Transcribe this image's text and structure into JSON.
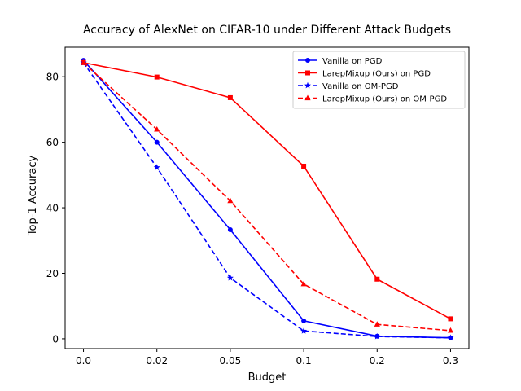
{
  "chart_data": {
    "type": "line",
    "title": "Accuracy of AlexNet on CIFAR-10 under Different Attack Budgets",
    "xlabel": "Budget",
    "ylabel": "Top-1 Accuracy",
    "categories": [
      "0.0",
      "0.02",
      "0.05",
      "0.1",
      "0.2",
      "0.3"
    ],
    "ylim": [
      -3,
      89
    ],
    "yticks": [
      0,
      20,
      40,
      60,
      80
    ],
    "grid": false,
    "legend_position": "top-right",
    "series": [
      {
        "name": "Vanilla on PGD",
        "color": "#0000ff",
        "linestyle": "solid",
        "marker": "circle",
        "values": [
          85.0,
          60.0,
          33.3,
          5.5,
          0.8,
          0.3
        ]
      },
      {
        "name": "LarepMixup (Ours) on PGD",
        "color": "#ff0000",
        "linestyle": "solid",
        "marker": "square",
        "values": [
          84.3,
          79.9,
          73.6,
          52.7,
          18.2,
          6.1
        ]
      },
      {
        "name": "Vanilla on OM-PGD",
        "color": "#0000ff",
        "linestyle": "dashed",
        "marker": "star",
        "values": [
          84.3,
          52.3,
          18.6,
          2.4,
          0.7,
          0.3
        ]
      },
      {
        "name": "LarepMixup (Ours) on OM-PGD",
        "color": "#ff0000",
        "linestyle": "dashed",
        "marker": "triangle",
        "values": [
          84.3,
          63.9,
          42.1,
          16.7,
          4.4,
          2.5
        ]
      }
    ]
  }
}
